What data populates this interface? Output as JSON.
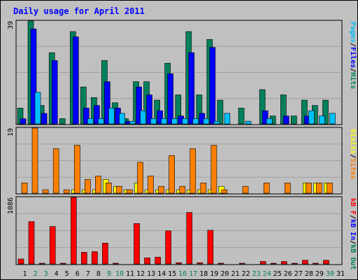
{
  "chart_data": [
    {
      "type": "bar",
      "title": "Daily usage for April 2011",
      "panel": "top",
      "ymax_label": "39",
      "ylim": [
        0,
        39
      ],
      "categories": [
        "1",
        "2",
        "3",
        "4",
        "5",
        "6",
        "7",
        "8",
        "9",
        "10",
        "11",
        "12",
        "13",
        "14",
        "15",
        "16",
        "17",
        "18",
        "19",
        "20",
        "21",
        "22",
        "23",
        "24",
        "25",
        "26",
        "27",
        "28",
        "29",
        "30",
        "31"
      ],
      "series": [
        {
          "name": "Hits",
          "color": "#00805c",
          "values": [
            6,
            39,
            7,
            27,
            2,
            35,
            14,
            10,
            24,
            8,
            2,
            16,
            16,
            9,
            23,
            11,
            35,
            11,
            32,
            9,
            0,
            6,
            0,
            13,
            3,
            11,
            3,
            9,
            7,
            9,
            0
          ]
        },
        {
          "name": "Files",
          "color": "#0000ff",
          "values": [
            2,
            36,
            4,
            24,
            0,
            33,
            6,
            7,
            16,
            6,
            1,
            14,
            11,
            5,
            19,
            3,
            27,
            4,
            29,
            0,
            0,
            0,
            0,
            5,
            0,
            3,
            0,
            3,
            0,
            0,
            0
          ]
        },
        {
          "name": "Pages",
          "color": "#00c0ff",
          "values": [
            0,
            12,
            0,
            0,
            0,
            0,
            2,
            2,
            6,
            4,
            1,
            5,
            2,
            2,
            2,
            2,
            2,
            2,
            1,
            4,
            0,
            1,
            0,
            2,
            0,
            0,
            0,
            5,
            3,
            4,
            0
          ]
        }
      ],
      "legend_labels": [
        "Pages",
        "/",
        "Files",
        "/",
        "Hits"
      ],
      "legend_colors": [
        "#00c0ff",
        "#000000",
        "#0000ff",
        "#000000",
        "#00805c"
      ]
    },
    {
      "type": "bar",
      "panel": "middle",
      "ymax_label": "19",
      "ylim": [
        0,
        19
      ],
      "categories": [
        "1",
        "2",
        "3",
        "4",
        "5",
        "6",
        "7",
        "8",
        "9",
        "10",
        "11",
        "12",
        "13",
        "14",
        "15",
        "16",
        "17",
        "18",
        "19",
        "20",
        "21",
        "22",
        "23",
        "24",
        "25",
        "26",
        "27",
        "28",
        "29",
        "30",
        "31"
      ],
      "series": [
        {
          "name": "Visits",
          "color": "#ffff00",
          "values": [
            0,
            0,
            0,
            0,
            0,
            1,
            1,
            1,
            4,
            2,
            1,
            3,
            1,
            1,
            1,
            1,
            1,
            1,
            1,
            2,
            0,
            0,
            0,
            0,
            0,
            0,
            0,
            3,
            3,
            3,
            0
          ]
        },
        {
          "name": "Sites",
          "color": "#ff8000",
          "values": [
            3,
            19,
            1,
            13,
            1,
            14,
            4,
            5,
            3,
            2,
            1,
            9,
            5,
            2,
            11,
            2,
            13,
            3,
            14,
            1,
            0,
            2,
            0,
            3,
            0,
            3,
            0,
            3,
            3,
            3,
            0
          ]
        }
      ],
      "legend_labels": [
        "Visits",
        "/",
        "Sites"
      ],
      "legend_colors": [
        "#ffff00",
        "#000000",
        "#ff8000"
      ]
    },
    {
      "type": "bar",
      "panel": "bottom",
      "ymax_label": "1086",
      "ylim": [
        0,
        1086
      ],
      "categories": [
        "1",
        "2",
        "3",
        "4",
        "5",
        "6",
        "7",
        "8",
        "9",
        "10",
        "11",
        "12",
        "13",
        "14",
        "15",
        "16",
        "17",
        "18",
        "19",
        "20",
        "21",
        "22",
        "23",
        "24",
        "25",
        "26",
        "27",
        "28",
        "29",
        "30",
        "31"
      ],
      "series": [
        {
          "name": "KBytes",
          "color": "#ff0000",
          "values": [
            80,
            690,
            10,
            610,
            10,
            1086,
            190,
            200,
            340,
            10,
            0,
            660,
            100,
            110,
            540,
            20,
            840,
            20,
            550,
            10,
            0,
            10,
            0,
            40,
            10,
            40,
            10,
            60,
            10,
            60,
            0
          ]
        }
      ],
      "legend_labels": [
        "kB F",
        "/",
        "kB In",
        "/",
        "kB Out"
      ],
      "legend_colors": [
        "#ff0000",
        "#000000",
        "#0000ff",
        "#000000",
        "#00805c"
      ]
    }
  ],
  "x_label_colors": {
    "weekday": "#000000",
    "weekend": "#00805c"
  },
  "weekend_days": [
    "2",
    "3",
    "9",
    "10",
    "16",
    "17",
    "23",
    "24",
    "30"
  ],
  "colors": {
    "background": "#c0c0c0",
    "grid": "#a0a0a0",
    "title": "#0000ff"
  }
}
